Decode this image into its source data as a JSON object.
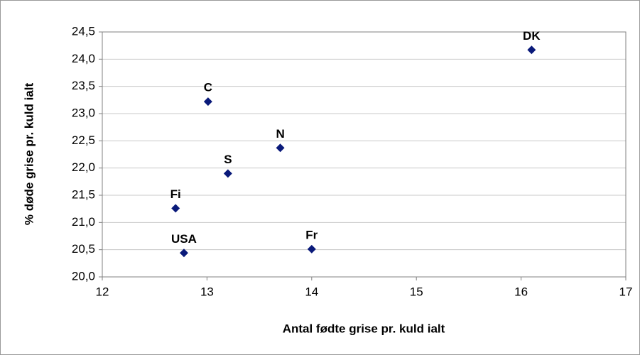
{
  "chart_data": {
    "type": "scatter",
    "x_label": "Antal fødte grise pr. kuld ialt",
    "y_label": "% døde grise pr. kuld ialt",
    "point_labels": [
      "DK",
      "C",
      "N",
      "S",
      "Fi",
      "USA",
      "Fr"
    ],
    "x": [
      16.1,
      13.01,
      13.7,
      13.2,
      12.7,
      12.78,
      14.0
    ],
    "values": [
      24.17,
      23.22,
      22.37,
      21.9,
      21.26,
      20.44,
      20.51
    ],
    "color": "#0a1a7a",
    "xlim": [
      12,
      17
    ],
    "xticks": [
      12,
      13,
      14,
      15,
      16,
      17
    ],
    "ylim": [
      20,
      24.5
    ],
    "yticks": [
      {
        "value": 20,
        "label": "20,0"
      },
      {
        "value": 20.5,
        "label": "20,5"
      },
      {
        "value": 21,
        "label": "21,0"
      },
      {
        "value": 21.5,
        "label": "21,5"
      },
      {
        "value": 22,
        "label": "22,0"
      },
      {
        "value": 22.5,
        "label": "22,5"
      },
      {
        "value": 23,
        "label": "23,0"
      },
      {
        "value": 23.5,
        "label": "23,5"
      },
      {
        "value": 24,
        "label": "24,0"
      },
      {
        "value": 24.5,
        "label": "24,5"
      }
    ],
    "grid": true
  }
}
